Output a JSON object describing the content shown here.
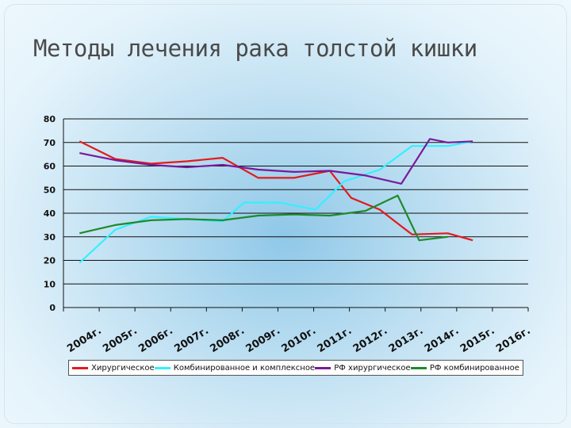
{
  "title": "Методы лечения рака толстой кишки",
  "colors": {
    "surgical": "#e41a1a",
    "combined": "#33f0ff",
    "rf_surgical": "#7a1a9a",
    "rf_combined": "#1f8a2a"
  },
  "chart_data": {
    "type": "line",
    "categories": [
      "2004г.",
      "2005г.",
      "2006г.",
      "2007г.",
      "2008г.",
      "2009г.",
      "2010г.",
      "2011г.",
      "2012г.",
      "2013г.",
      "2014г.",
      "2015г.",
      "2016г."
    ],
    "y_ticks": [
      "0",
      "10",
      "20",
      "30",
      "40",
      "50",
      "60",
      "70",
      "80"
    ],
    "ylim": [
      0,
      80
    ],
    "grid": true,
    "legend_position": "bottom",
    "series": [
      {
        "name": "Хирургическое",
        "color_key": "surgical",
        "points": [
          [
            0,
            70.5
          ],
          [
            1,
            63
          ],
          [
            2,
            61
          ],
          [
            3,
            62
          ],
          [
            4,
            63.5
          ],
          [
            5,
            55
          ],
          [
            6,
            55
          ],
          [
            7,
            58
          ],
          [
            7.6,
            46.5
          ],
          [
            8.4,
            41.5
          ],
          [
            9.3,
            31
          ],
          [
            10.3,
            31.5
          ],
          [
            11.0,
            28.5
          ]
        ]
      },
      {
        "name": "Комбинированное и комплексное",
        "color_key": "combined",
        "points": [
          [
            0,
            19
          ],
          [
            1,
            33
          ],
          [
            2,
            38.5
          ],
          [
            3,
            37.5
          ],
          [
            4,
            36.5
          ],
          [
            4.6,
            44.5
          ],
          [
            5.6,
            44.5
          ],
          [
            6.6,
            41.5
          ],
          [
            7.4,
            53.5
          ],
          [
            8.4,
            58.5
          ],
          [
            9.3,
            68.5
          ],
          [
            10.3,
            68.5
          ],
          [
            11.0,
            70.5
          ]
        ]
      },
      {
        "name": "РФ хирургическое",
        "color_key": "rf_surgical",
        "points": [
          [
            0,
            65.5
          ],
          [
            1,
            62.5
          ],
          [
            2,
            60.5
          ],
          [
            3,
            59.5
          ],
          [
            4,
            60.5
          ],
          [
            5,
            58.5
          ],
          [
            6,
            57.5
          ],
          [
            7,
            58
          ],
          [
            8,
            56
          ],
          [
            9,
            52.5
          ],
          [
            9.8,
            71.5
          ],
          [
            10.3,
            70
          ],
          [
            11.0,
            70.5
          ]
        ]
      },
      {
        "name": "РФ комбинированное",
        "color_key": "rf_combined",
        "points": [
          [
            0,
            31.5
          ],
          [
            1,
            35
          ],
          [
            2,
            37
          ],
          [
            3,
            37.5
          ],
          [
            4,
            37
          ],
          [
            5,
            39
          ],
          [
            6,
            39.5
          ],
          [
            7,
            39
          ],
          [
            8,
            41
          ],
          [
            8.9,
            47.5
          ],
          [
            9.5,
            28.5
          ],
          [
            10.3,
            30
          ]
        ]
      }
    ]
  }
}
